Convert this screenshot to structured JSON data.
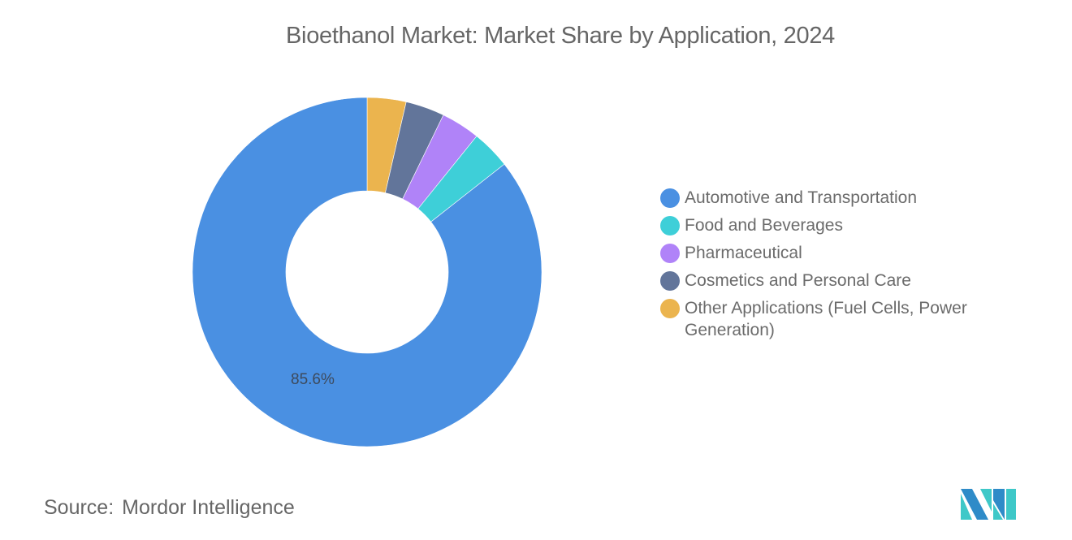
{
  "header": {
    "title": "Bioethanol Market: Market Share by Application, 2024"
  },
  "chart_data": {
    "type": "pie",
    "subtype": "donut",
    "title": "Bioethanol Market: Market Share by Application, 2024",
    "categories": [
      "Automotive and Transportation",
      "Food and Beverages",
      "Pharmaceutical",
      "Cosmetics and Personal Care",
      "Other Applications (Fuel Cells, Power Generation)"
    ],
    "values": [
      85.6,
      3.6,
      3.6,
      3.6,
      3.6
    ],
    "colors": [
      "#4a90e2",
      "#3ecfd8",
      "#b083f8",
      "#62759a",
      "#ebb44e"
    ],
    "data_labels": [
      {
        "category": "Automotive and Transportation",
        "text": "85.6%"
      }
    ],
    "legend_position": "right",
    "start_angle_deg": 0,
    "direction": "counterclockwise-from-top for Automotive; small slices clockwise from top: Other, Cosmetics, Pharmaceutical, Food"
  },
  "legend": {
    "items": [
      {
        "label": "Automotive and Transportation",
        "color": "#4a90e2"
      },
      {
        "label": "Food and Beverages",
        "color": "#3ecfd8"
      },
      {
        "label": "Pharmaceutical",
        "color": "#b083f8"
      },
      {
        "label": "Cosmetics and Personal Care",
        "color": "#62759a"
      },
      {
        "label": "Other Applications (Fuel Cells, Power Generation)",
        "color": "#ebb44e"
      }
    ]
  },
  "labels": {
    "main_slice": "85.6%"
  },
  "footer": {
    "source_key": "Source:",
    "source_value": "Mordor Intelligence",
    "logo": "mordor-intelligence-logo"
  }
}
